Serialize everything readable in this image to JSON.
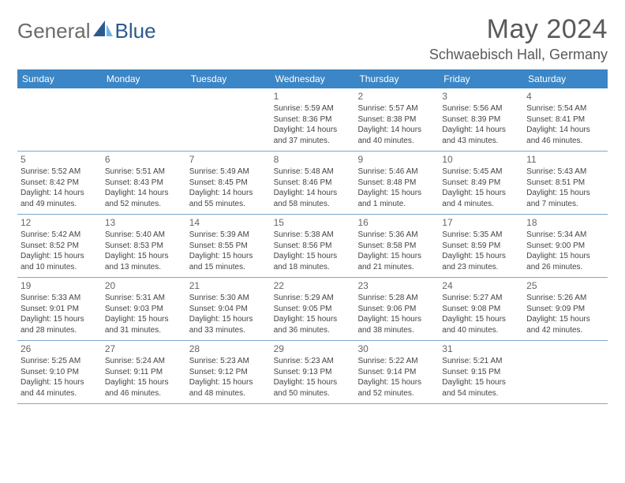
{
  "brand": {
    "part1": "General",
    "part2": "Blue",
    "color1": "#6b6b6b",
    "color2": "#2b5a8f"
  },
  "title": "May 2024",
  "location": "Schwaebisch Hall, Germany",
  "header_bg": "#3b86c6",
  "divider_color": "#7fa8cf",
  "weekdays": [
    "Sunday",
    "Monday",
    "Tuesday",
    "Wednesday",
    "Thursday",
    "Friday",
    "Saturday"
  ],
  "weeks": [
    [
      {
        "n": "",
        "lines": []
      },
      {
        "n": "",
        "lines": []
      },
      {
        "n": "",
        "lines": []
      },
      {
        "n": "1",
        "lines": [
          "Sunrise: 5:59 AM",
          "Sunset: 8:36 PM",
          "Daylight: 14 hours",
          "and 37 minutes."
        ]
      },
      {
        "n": "2",
        "lines": [
          "Sunrise: 5:57 AM",
          "Sunset: 8:38 PM",
          "Daylight: 14 hours",
          "and 40 minutes."
        ]
      },
      {
        "n": "3",
        "lines": [
          "Sunrise: 5:56 AM",
          "Sunset: 8:39 PM",
          "Daylight: 14 hours",
          "and 43 minutes."
        ]
      },
      {
        "n": "4",
        "lines": [
          "Sunrise: 5:54 AM",
          "Sunset: 8:41 PM",
          "Daylight: 14 hours",
          "and 46 minutes."
        ]
      }
    ],
    [
      {
        "n": "5",
        "lines": [
          "Sunrise: 5:52 AM",
          "Sunset: 8:42 PM",
          "Daylight: 14 hours",
          "and 49 minutes."
        ]
      },
      {
        "n": "6",
        "lines": [
          "Sunrise: 5:51 AM",
          "Sunset: 8:43 PM",
          "Daylight: 14 hours",
          "and 52 minutes."
        ]
      },
      {
        "n": "7",
        "lines": [
          "Sunrise: 5:49 AM",
          "Sunset: 8:45 PM",
          "Daylight: 14 hours",
          "and 55 minutes."
        ]
      },
      {
        "n": "8",
        "lines": [
          "Sunrise: 5:48 AM",
          "Sunset: 8:46 PM",
          "Daylight: 14 hours",
          "and 58 minutes."
        ]
      },
      {
        "n": "9",
        "lines": [
          "Sunrise: 5:46 AM",
          "Sunset: 8:48 PM",
          "Daylight: 15 hours",
          "and 1 minute."
        ]
      },
      {
        "n": "10",
        "lines": [
          "Sunrise: 5:45 AM",
          "Sunset: 8:49 PM",
          "Daylight: 15 hours",
          "and 4 minutes."
        ]
      },
      {
        "n": "11",
        "lines": [
          "Sunrise: 5:43 AM",
          "Sunset: 8:51 PM",
          "Daylight: 15 hours",
          "and 7 minutes."
        ]
      }
    ],
    [
      {
        "n": "12",
        "lines": [
          "Sunrise: 5:42 AM",
          "Sunset: 8:52 PM",
          "Daylight: 15 hours",
          "and 10 minutes."
        ]
      },
      {
        "n": "13",
        "lines": [
          "Sunrise: 5:40 AM",
          "Sunset: 8:53 PM",
          "Daylight: 15 hours",
          "and 13 minutes."
        ]
      },
      {
        "n": "14",
        "lines": [
          "Sunrise: 5:39 AM",
          "Sunset: 8:55 PM",
          "Daylight: 15 hours",
          "and 15 minutes."
        ]
      },
      {
        "n": "15",
        "lines": [
          "Sunrise: 5:38 AM",
          "Sunset: 8:56 PM",
          "Daylight: 15 hours",
          "and 18 minutes."
        ]
      },
      {
        "n": "16",
        "lines": [
          "Sunrise: 5:36 AM",
          "Sunset: 8:58 PM",
          "Daylight: 15 hours",
          "and 21 minutes."
        ]
      },
      {
        "n": "17",
        "lines": [
          "Sunrise: 5:35 AM",
          "Sunset: 8:59 PM",
          "Daylight: 15 hours",
          "and 23 minutes."
        ]
      },
      {
        "n": "18",
        "lines": [
          "Sunrise: 5:34 AM",
          "Sunset: 9:00 PM",
          "Daylight: 15 hours",
          "and 26 minutes."
        ]
      }
    ],
    [
      {
        "n": "19",
        "lines": [
          "Sunrise: 5:33 AM",
          "Sunset: 9:01 PM",
          "Daylight: 15 hours",
          "and 28 minutes."
        ]
      },
      {
        "n": "20",
        "lines": [
          "Sunrise: 5:31 AM",
          "Sunset: 9:03 PM",
          "Daylight: 15 hours",
          "and 31 minutes."
        ]
      },
      {
        "n": "21",
        "lines": [
          "Sunrise: 5:30 AM",
          "Sunset: 9:04 PM",
          "Daylight: 15 hours",
          "and 33 minutes."
        ]
      },
      {
        "n": "22",
        "lines": [
          "Sunrise: 5:29 AM",
          "Sunset: 9:05 PM",
          "Daylight: 15 hours",
          "and 36 minutes."
        ]
      },
      {
        "n": "23",
        "lines": [
          "Sunrise: 5:28 AM",
          "Sunset: 9:06 PM",
          "Daylight: 15 hours",
          "and 38 minutes."
        ]
      },
      {
        "n": "24",
        "lines": [
          "Sunrise: 5:27 AM",
          "Sunset: 9:08 PM",
          "Daylight: 15 hours",
          "and 40 minutes."
        ]
      },
      {
        "n": "25",
        "lines": [
          "Sunrise: 5:26 AM",
          "Sunset: 9:09 PM",
          "Daylight: 15 hours",
          "and 42 minutes."
        ]
      }
    ],
    [
      {
        "n": "26",
        "lines": [
          "Sunrise: 5:25 AM",
          "Sunset: 9:10 PM",
          "Daylight: 15 hours",
          "and 44 minutes."
        ]
      },
      {
        "n": "27",
        "lines": [
          "Sunrise: 5:24 AM",
          "Sunset: 9:11 PM",
          "Daylight: 15 hours",
          "and 46 minutes."
        ]
      },
      {
        "n": "28",
        "lines": [
          "Sunrise: 5:23 AM",
          "Sunset: 9:12 PM",
          "Daylight: 15 hours",
          "and 48 minutes."
        ]
      },
      {
        "n": "29",
        "lines": [
          "Sunrise: 5:23 AM",
          "Sunset: 9:13 PM",
          "Daylight: 15 hours",
          "and 50 minutes."
        ]
      },
      {
        "n": "30",
        "lines": [
          "Sunrise: 5:22 AM",
          "Sunset: 9:14 PM",
          "Daylight: 15 hours",
          "and 52 minutes."
        ]
      },
      {
        "n": "31",
        "lines": [
          "Sunrise: 5:21 AM",
          "Sunset: 9:15 PM",
          "Daylight: 15 hours",
          "and 54 minutes."
        ]
      },
      {
        "n": "",
        "lines": []
      }
    ]
  ]
}
